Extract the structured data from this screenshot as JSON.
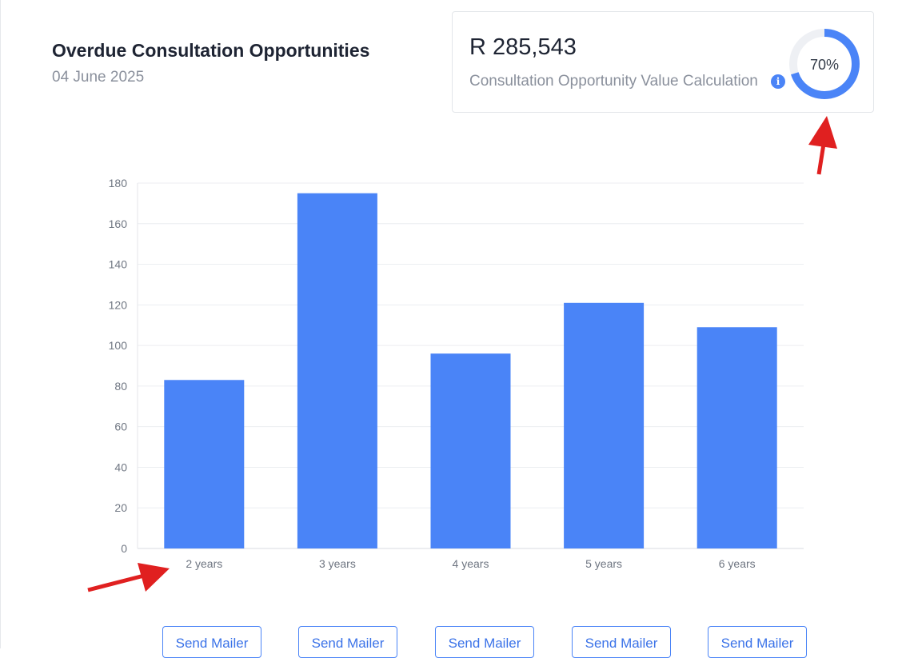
{
  "header": {
    "title": "Overdue Consultation Opportunities",
    "date": "04 June 2025"
  },
  "summary_card": {
    "amount": "R 285,543",
    "caption": "Consultation Opportunity Value Calculation",
    "info_icon": "info-icon",
    "percent_label": "70%",
    "percent_value": 70,
    "accent_color": "#4a84f7",
    "track_color": "#eef0f4"
  },
  "chart_data": {
    "type": "bar",
    "categories": [
      "2 years",
      "3 years",
      "4 years",
      "5 years",
      "6 years"
    ],
    "values": [
      83,
      175,
      96,
      121,
      109
    ],
    "ylim": [
      0,
      180
    ],
    "yticks": [
      0,
      20,
      40,
      60,
      80,
      100,
      120,
      140,
      160,
      180
    ],
    "grid": true,
    "bar_color": "#4a84f7",
    "title": "",
    "xlabel": "",
    "ylabel": ""
  },
  "mailer_buttons": [
    {
      "label": "Send Mailer"
    },
    {
      "label": "Send Mailer"
    },
    {
      "label": "Send Mailer"
    },
    {
      "label": "Send Mailer"
    },
    {
      "label": "Send Mailer"
    }
  ],
  "annotation_color": "#e02020"
}
